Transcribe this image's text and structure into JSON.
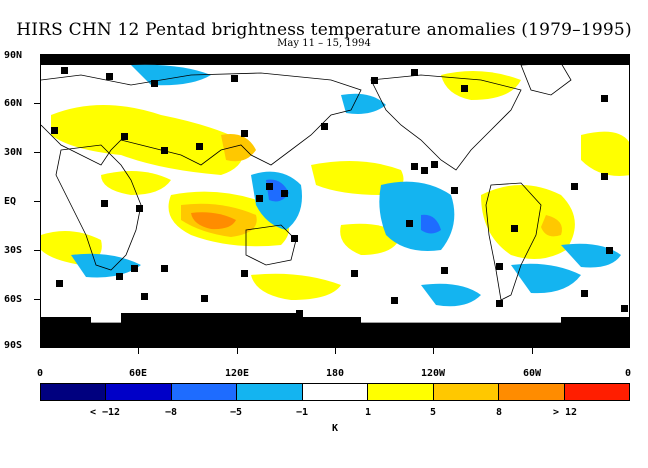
{
  "title": "HIRS CHN 12 Pentad brightness temperature anomalies (1979–1995)",
  "subtitle": "May 11 – 15, 1994",
  "y_axis_labels": [
    "90N",
    "60N",
    "30N",
    "EQ",
    "30S",
    "60S",
    "90S"
  ],
  "x_axis_labels": [
    "0",
    "60E",
    "120E",
    "180",
    "120W",
    "60W",
    "0"
  ],
  "colorbar": {
    "labels": [
      "< −12",
      "−8",
      "−5",
      "−1",
      "1",
      "5",
      "8",
      "> 12"
    ],
    "unit": "K",
    "colors": [
      "#00007f",
      "#0000c8",
      "#1e6cff",
      "#14b4f0",
      "#ffffff",
      "#ffff00",
      "#ffc800",
      "#ff8c00",
      "#ff1e00"
    ]
  },
  "map_colors": {
    "land_outline": "#000000",
    "missing": "#000000",
    "neg_weak": "#14b4f0",
    "neg_mid": "#1e6cff",
    "pos_weak": "#ffff00",
    "pos_mid": "#ffc800",
    "pos_strong": "#ff8c00"
  }
}
